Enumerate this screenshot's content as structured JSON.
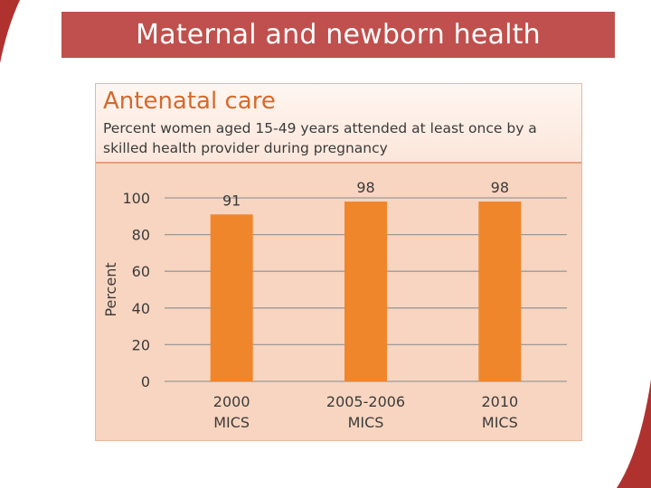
{
  "slide": {
    "title": "Maternal and newborn health",
    "accent_color": "#c0504d"
  },
  "chart_data": {
    "type": "bar",
    "title": "Antenatal care",
    "subtitle": "Percent women aged 15-49 years attended at least once by a skilled health provider during pregnancy",
    "ylabel": "Percent",
    "xlabel": "",
    "ylim": [
      0,
      100
    ],
    "yticks": [
      0,
      20,
      40,
      60,
      80,
      100
    ],
    "categories": [
      [
        "2000",
        "MICS"
      ],
      [
        "2005-2006",
        "MICS"
      ],
      [
        "2010",
        "MICS"
      ]
    ],
    "values": [
      91,
      98,
      98
    ],
    "bar_color": "#f0862c",
    "grid": true
  }
}
